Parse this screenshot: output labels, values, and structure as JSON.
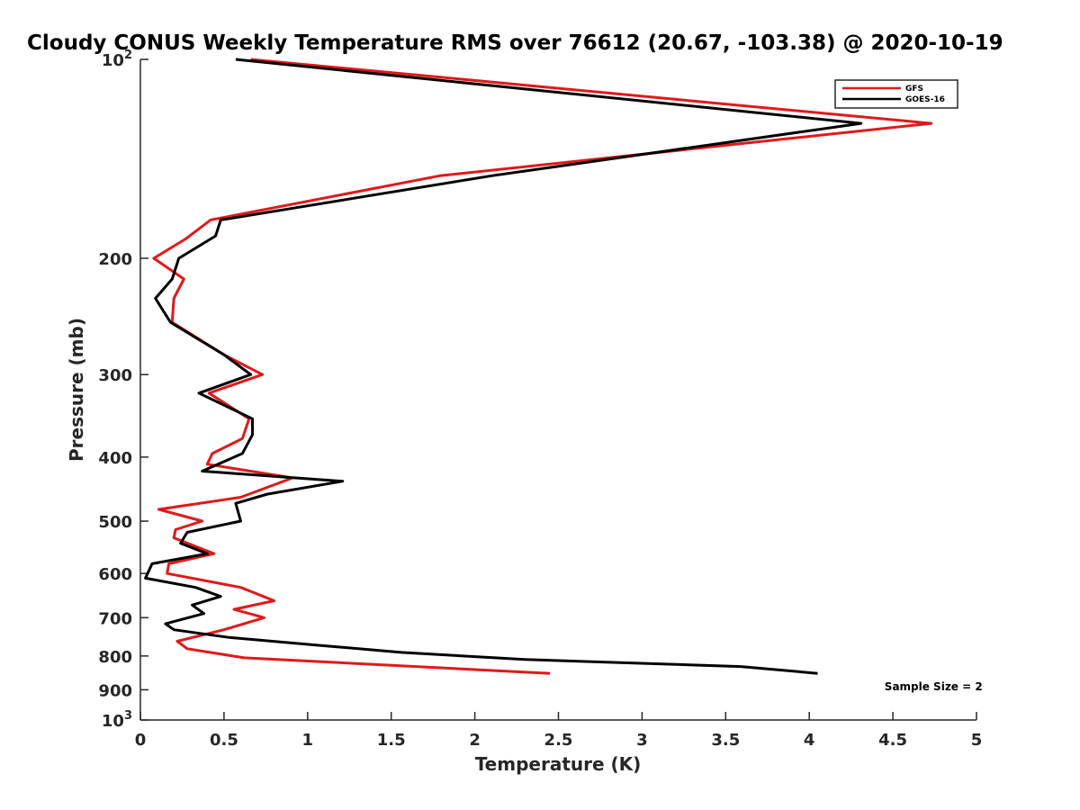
{
  "chart_data": {
    "type": "line",
    "title": "Cloudy CONUS Weekly Temperature RMS over 76612 (20.67, -103.38) @ 2020-10-19",
    "xlabel": "Temperature (K)",
    "ylabel": "Pressure (mb)",
    "xlim": [
      0,
      5
    ],
    "ylim": [
      100,
      1000
    ],
    "yscale": "log",
    "y_reversed": true,
    "grid": false,
    "legend_position": "top-right",
    "x_ticks": [
      "0",
      "0.5",
      "1",
      "1.5",
      "2",
      "2.5",
      "3",
      "3.5",
      "4",
      "4.5",
      "5"
    ],
    "y_ticks": [
      {
        "value": 100,
        "base": "10",
        "exp": "2"
      },
      {
        "value": 200,
        "label": "200"
      },
      {
        "value": 300,
        "label": "300"
      },
      {
        "value": 400,
        "label": "400"
      },
      {
        "value": 500,
        "label": "500"
      },
      {
        "value": 600,
        "label": "600"
      },
      {
        "value": 700,
        "label": "700"
      },
      {
        "value": 800,
        "label": "800"
      },
      {
        "value": 900,
        "label": "900"
      },
      {
        "value": 1000,
        "base": "10",
        "exp": "3"
      }
    ],
    "series": [
      {
        "name": "GFS",
        "color": "#e0191b",
        "points": [
          [
            0.66,
            100
          ],
          [
            4.73,
            125
          ],
          [
            1.79,
            150
          ],
          [
            0.42,
            175
          ],
          [
            0.27,
            187
          ],
          [
            0.08,
            200
          ],
          [
            0.26,
            215
          ],
          [
            0.2,
            230
          ],
          [
            0.19,
            250
          ],
          [
            0.5,
            280
          ],
          [
            0.73,
            300
          ],
          [
            0.41,
            320
          ],
          [
            0.65,
            350
          ],
          [
            0.61,
            375
          ],
          [
            0.43,
            395
          ],
          [
            0.4,
            410
          ],
          [
            0.91,
            430
          ],
          [
            0.6,
            460
          ],
          [
            0.11,
            480
          ],
          [
            0.37,
            500
          ],
          [
            0.21,
            515
          ],
          [
            0.2,
            530
          ],
          [
            0.44,
            560
          ],
          [
            0.17,
            580
          ],
          [
            0.16,
            600
          ],
          [
            0.6,
            630
          ],
          [
            0.8,
            660
          ],
          [
            0.56,
            680
          ],
          [
            0.74,
            700
          ],
          [
            0.5,
            730
          ],
          [
            0.22,
            760
          ],
          [
            0.28,
            780
          ],
          [
            0.62,
            805
          ],
          [
            2.45,
            850
          ]
        ]
      },
      {
        "name": "GOES-16",
        "color": "#000000",
        "points": [
          [
            0.57,
            100
          ],
          [
            4.31,
            125
          ],
          [
            2.1,
            150
          ],
          [
            0.48,
            175
          ],
          [
            0.45,
            185
          ],
          [
            0.23,
            200
          ],
          [
            0.19,
            215
          ],
          [
            0.09,
            230
          ],
          [
            0.18,
            250
          ],
          [
            0.5,
            280
          ],
          [
            0.66,
            300
          ],
          [
            0.35,
            320
          ],
          [
            0.67,
            350
          ],
          [
            0.67,
            370
          ],
          [
            0.61,
            395
          ],
          [
            0.37,
            420
          ],
          [
            1.21,
            435
          ],
          [
            0.76,
            455
          ],
          [
            0.57,
            470
          ],
          [
            0.6,
            500
          ],
          [
            0.28,
            520
          ],
          [
            0.24,
            540
          ],
          [
            0.4,
            560
          ],
          [
            0.07,
            580
          ],
          [
            0.03,
            610
          ],
          [
            0.33,
            630
          ],
          [
            0.48,
            650
          ],
          [
            0.31,
            670
          ],
          [
            0.38,
            690
          ],
          [
            0.15,
            715
          ],
          [
            0.2,
            730
          ],
          [
            0.53,
            750
          ],
          [
            1.05,
            770
          ],
          [
            1.56,
            790
          ],
          [
            2.3,
            810
          ],
          [
            3.59,
            830
          ],
          [
            4.05,
            850
          ]
        ]
      }
    ],
    "annotations": [
      {
        "text": "Sample Size = 2",
        "x": 4.45,
        "y": 890
      }
    ]
  }
}
